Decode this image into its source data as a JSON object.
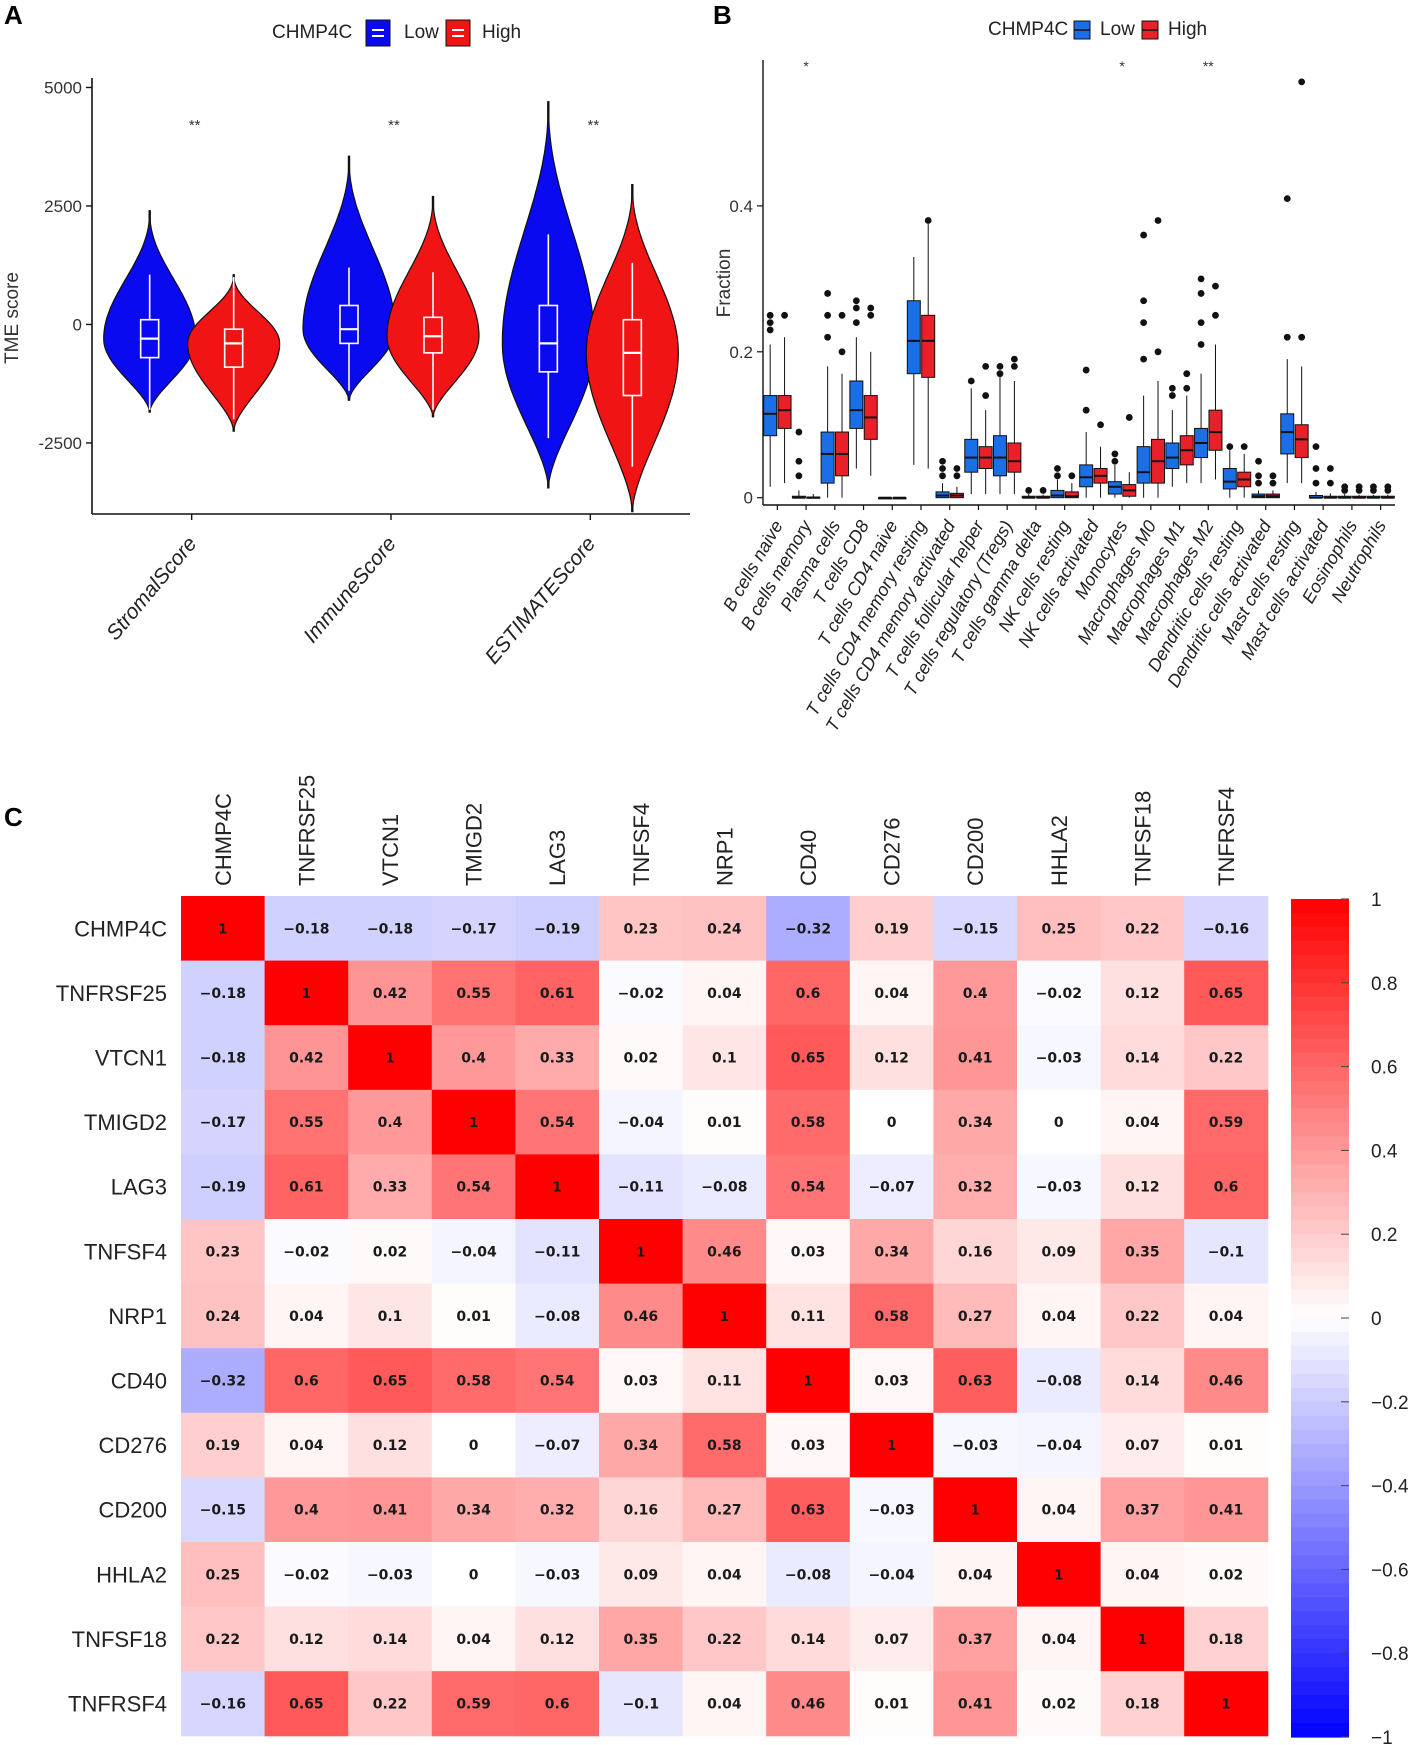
{
  "panels": {
    "a": "A",
    "b": "B",
    "c": "C"
  },
  "colors": {
    "low": "#0a0af0",
    "high": "#f01414",
    "lowB": "#1a6ee6",
    "highB": "#e8202a"
  },
  "legend": {
    "title": "CHMP4C",
    "low": "Low",
    "high": "High"
  },
  "chart_data": [
    {
      "type": "violin",
      "panel": "A",
      "ylabel": "TME score",
      "ylim": [
        -4000,
        5200
      ],
      "yticks": [
        -2500,
        0,
        2500,
        5000
      ],
      "categories": [
        "StromalScore",
        "ImmuneScore",
        "ESTIMATEScore"
      ],
      "significance": [
        "**",
        "**",
        "**"
      ],
      "series": [
        {
          "name": "Low",
          "stats": [
            {
              "min": -1800,
              "q1": -700,
              "median": -300,
              "q3": 100,
              "max": 1050,
              "vmin": -1850,
              "vmax": 2400,
              "peak": -300
            },
            {
              "min": -1400,
              "q1": -400,
              "median": -100,
              "q3": 400,
              "max": 1200,
              "vmin": -1600,
              "vmax": 3550,
              "peak": -100
            },
            {
              "min": -2400,
              "q1": -1000,
              "median": -400,
              "q3": 400,
              "max": 1900,
              "vmin": -3450,
              "vmax": 4700,
              "peak": -400
            }
          ]
        },
        {
          "name": "High",
          "stats": [
            {
              "min": -2000,
              "q1": -900,
              "median": -400,
              "q3": -100,
              "max": 1000,
              "vmin": -2250,
              "vmax": 1050,
              "peak": -400
            },
            {
              "min": -1800,
              "q1": -600,
              "median": -250,
              "q3": 150,
              "max": 1100,
              "vmin": -1950,
              "vmax": 2700,
              "peak": -250
            },
            {
              "min": -3000,
              "q1": -1500,
              "median": -600,
              "q3": 100,
              "max": 1300,
              "vmin": -3950,
              "vmax": 2950,
              "peak": -600
            }
          ]
        }
      ]
    },
    {
      "type": "box",
      "panel": "B",
      "ylabel": "Fraction",
      "ylim": [
        -0.01,
        0.6
      ],
      "yticks": [
        0.0,
        0.2,
        0.4
      ],
      "categories": [
        "B cells naive",
        "B cells memory",
        "Plasma cells",
        "T cells CD8",
        "T cells CD4 naive",
        "T cells CD4 memory resting",
        "T cells CD4 memory activated",
        "T cells follicular helper",
        "T cells regulatory (Tregs)",
        "T cells gamma delta",
        "NK cells resting",
        "NK cells activated",
        "Monocytes",
        "Macrophages M0",
        "Macrophages M1",
        "Macrophages M2",
        "Dendritic cells resting",
        "Dendritic cells activated",
        "Mast cells resting",
        "Mast cells activated",
        "Eosinophils",
        "Neutrophils"
      ],
      "significance": [
        "",
        "*",
        "",
        "",
        "",
        "",
        "",
        "",
        "",
        "",
        "",
        "",
        "*",
        "",
        "",
        "**",
        "",
        "",
        "",
        "",
        "",
        ""
      ],
      "series": [
        {
          "name": "Low",
          "boxes": [
            [
              0.015,
              0.085,
              0.115,
              0.14,
              0.21
            ],
            [
              0,
              0,
              0,
              0.002,
              0.01
            ],
            [
              0,
              0.02,
              0.06,
              0.09,
              0.18
            ],
            [
              0.04,
              0.095,
              0.12,
              0.16,
              0.22
            ],
            [
              0,
              0,
              0,
              0,
              0
            ],
            [
              0.045,
              0.17,
              0.215,
              0.27,
              0.33
            ],
            [
              0,
              0,
              0.003,
              0.008,
              0.02
            ],
            [
              0.005,
              0.035,
              0.055,
              0.08,
              0.15
            ],
            [
              0.005,
              0.03,
              0.055,
              0.085,
              0.17
            ],
            [
              0,
              0,
              0,
              0.002,
              0.005
            ],
            [
              0,
              0,
              0.003,
              0.01,
              0.025
            ],
            [
              0,
              0.015,
              0.028,
              0.045,
              0.09
            ],
            [
              0,
              0.005,
              0.015,
              0.022,
              0.045
            ],
            [
              0,
              0.02,
              0.035,
              0.07,
              0.14
            ],
            [
              0.015,
              0.04,
              0.055,
              0.075,
              0.12
            ],
            [
              0.02,
              0.055,
              0.075,
              0.095,
              0.17
            ],
            [
              0,
              0.012,
              0.022,
              0.04,
              0.065
            ],
            [
              0,
              0,
              0.002,
              0.005,
              0.01
            ],
            [
              0.02,
              0.06,
              0.09,
              0.115,
              0.19
            ],
            [
              0,
              0,
              0,
              0.003,
              0.008
            ],
            [
              0,
              0,
              0,
              0.002,
              0.005
            ],
            [
              0,
              0,
              0,
              0.002,
              0.004
            ]
          ],
          "outliers": [
            [
              0.23,
              0.24,
              0.25
            ],
            [
              0.03,
              0.05,
              0.09
            ],
            [
              0.22,
              0.25,
              0.28
            ],
            [
              0.24,
              0.26,
              0.27
            ],
            [],
            [],
            [
              0.03,
              0.04,
              0.05
            ],
            [
              0.16
            ],
            [
              0.17,
              0.18
            ],
            [
              0.01
            ],
            [
              0.03,
              0.04
            ],
            [
              0.12,
              0.175
            ],
            [
              0.05,
              0.06
            ],
            [
              0.19,
              0.24,
              0.27,
              0.36
            ],
            [
              0.14,
              0.15
            ],
            [
              0.21,
              0.24,
              0.28,
              0.3
            ],
            [
              0.07
            ],
            [
              0.02,
              0.03,
              0.05
            ],
            [
              0.22,
              0.41
            ],
            [
              0.02,
              0.04,
              0.07
            ],
            [
              0.01,
              0.015
            ],
            [
              0.01,
              0.015
            ]
          ]
        },
        {
          "name": "High",
          "boxes": [
            [
              0.02,
              0.095,
              0.12,
              0.14,
              0.22
            ],
            [
              0,
              0,
              0,
              0.001,
              0.005
            ],
            [
              0,
              0.03,
              0.06,
              0.09,
              0.17
            ],
            [
              0.03,
              0.08,
              0.11,
              0.14,
              0.2
            ],
            [
              0,
              0,
              0,
              0,
              0
            ],
            [
              0.04,
              0.165,
              0.215,
              0.25,
              0.375
            ],
            [
              0,
              0,
              0.003,
              0.006,
              0.015
            ],
            [
              0.005,
              0.04,
              0.055,
              0.07,
              0.12
            ],
            [
              0.005,
              0.035,
              0.05,
              0.075,
              0.16
            ],
            [
              0,
              0,
              0,
              0.002,
              0.004
            ],
            [
              0,
              0,
              0.002,
              0.008,
              0.02
            ],
            [
              0,
              0.02,
              0.03,
              0.04,
              0.07
            ],
            [
              0,
              0.002,
              0.01,
              0.018,
              0.035
            ],
            [
              0,
              0.02,
              0.05,
              0.08,
              0.16
            ],
            [
              0.02,
              0.045,
              0.065,
              0.085,
              0.14
            ],
            [
              0.025,
              0.065,
              0.09,
              0.12,
              0.21
            ],
            [
              0,
              0.015,
              0.025,
              0.035,
              0.06
            ],
            [
              0,
              0,
              0.002,
              0.005,
              0.01
            ],
            [
              0.02,
              0.055,
              0.08,
              0.1,
              0.18
            ],
            [
              0,
              0,
              0,
              0.002,
              0.006
            ],
            [
              0,
              0,
              0,
              0.002,
              0.004
            ],
            [
              0,
              0,
              0,
              0.002,
              0.004
            ]
          ],
          "outliers": [
            [
              0.25
            ],
            [],
            [
              0.2,
              0.25
            ],
            [
              0.25,
              0.26
            ],
            [],
            [
              0.38
            ],
            [
              0.03,
              0.04
            ],
            [
              0.14,
              0.18
            ],
            [
              0.18,
              0.19
            ],
            [
              0.01
            ],
            [
              0.03
            ],
            [
              0.1
            ],
            [
              0.11
            ],
            [
              0.2,
              0.38
            ],
            [
              0.15,
              0.17
            ],
            [
              0.25,
              0.29
            ],
            [
              0.07
            ],
            [
              0.02,
              0.03
            ],
            [
              0.22,
              0.57
            ],
            [
              0.02,
              0.04
            ],
            [
              0.01,
              0.015
            ],
            [
              0.01,
              0.015
            ]
          ]
        }
      ]
    },
    {
      "type": "heatmap",
      "panel": "C",
      "labels": [
        "CHMP4C",
        "TNFRSF25",
        "VTCN1",
        "TMIGD2",
        "LAG3",
        "TNFSF4",
        "NRP1",
        "CD40",
        "CD276",
        "CD200",
        "HHLA2",
        "TNFSF18",
        "TNFRSF4"
      ],
      "values": [
        [
          1,
          -0.18,
          -0.18,
          -0.17,
          -0.19,
          0.23,
          0.24,
          -0.32,
          0.19,
          -0.15,
          0.25,
          0.22,
          -0.16
        ],
        [
          -0.18,
          1,
          0.42,
          0.55,
          0.61,
          -0.02,
          0.04,
          0.6,
          0.04,
          0.4,
          -0.02,
          0.12,
          0.65
        ],
        [
          -0.18,
          0.42,
          1,
          0.4,
          0.33,
          0.02,
          0.1,
          0.65,
          0.12,
          0.41,
          -0.03,
          0.14,
          0.22
        ],
        [
          -0.17,
          0.55,
          0.4,
          1,
          0.54,
          -0.04,
          0.01,
          0.58,
          0,
          0.34,
          0,
          0.04,
          0.59
        ],
        [
          -0.19,
          0.61,
          0.33,
          0.54,
          1,
          -0.11,
          -0.08,
          0.54,
          -0.07,
          0.32,
          -0.03,
          0.12,
          0.6
        ],
        [
          0.23,
          -0.02,
          0.02,
          -0.04,
          -0.11,
          1,
          0.46,
          0.03,
          0.34,
          0.16,
          0.09,
          0.35,
          -0.1
        ],
        [
          0.24,
          0.04,
          0.1,
          0.01,
          -0.08,
          0.46,
          1,
          0.11,
          0.58,
          0.27,
          0.04,
          0.22,
          0.04
        ],
        [
          -0.32,
          0.6,
          0.65,
          0.58,
          0.54,
          0.03,
          0.11,
          1,
          0.03,
          0.63,
          -0.08,
          0.14,
          0.46
        ],
        [
          0.19,
          0.04,
          0.12,
          0,
          -0.07,
          0.34,
          0.58,
          0.03,
          1,
          -0.03,
          -0.04,
          0.07,
          0.01
        ],
        [
          -0.15,
          0.4,
          0.41,
          0.34,
          0.32,
          0.16,
          0.27,
          0.63,
          -0.03,
          1,
          0.04,
          0.37,
          0.41
        ],
        [
          0.25,
          -0.02,
          -0.03,
          0,
          -0.03,
          0.09,
          0.04,
          -0.08,
          -0.04,
          0.04,
          1,
          0.04,
          0.02
        ],
        [
          0.22,
          0.12,
          0.14,
          0.04,
          0.12,
          0.35,
          0.22,
          0.14,
          0.07,
          0.37,
          0.04,
          1,
          0.18
        ],
        [
          -0.16,
          0.65,
          0.22,
          0.59,
          0.6,
          -0.1,
          0.04,
          0.46,
          0.01,
          0.41,
          0.02,
          0.18,
          1
        ]
      ],
      "colorbar": {
        "ticks": [
          1,
          0.8,
          0.6,
          0.4,
          0.2,
          0,
          -0.2,
          -0.4,
          -0.6,
          -0.8,
          -1
        ],
        "labels": [
          "1",
          "0.8",
          "0.6",
          "0.4",
          "0.2",
          "0",
          "−0.2",
          "−0.4",
          "−0.6",
          "−0.8",
          "−1"
        ]
      }
    }
  ]
}
